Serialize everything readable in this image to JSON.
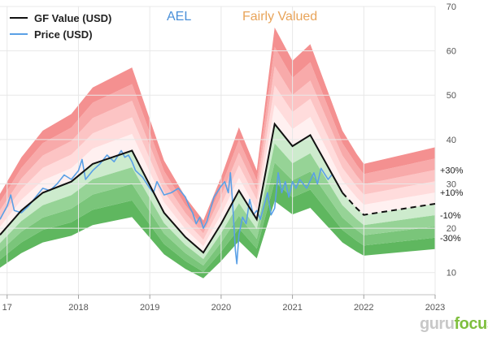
{
  "header": {
    "ticker": "AEL",
    "valuation": "Fairly Valued"
  },
  "brand": {
    "part1": "guru",
    "part2": "focus"
  },
  "colors": {
    "gf_value": "#111111",
    "price": "#5aa0e6",
    "ticker": "#4a90d9",
    "valuation": "#e8a45a",
    "over_bands": [
      "#fff0f0",
      "#ffdcdc",
      "#fcc4c4",
      "#f8aaaa",
      "#f49090",
      "#ef7070"
    ],
    "under_bands": [
      "#e6f6e6",
      "#cdebcd",
      "#b2e0b2",
      "#96d396",
      "#7ac57a",
      "#5fb75f"
    ]
  },
  "chart_data": {
    "type": "line",
    "title": "",
    "xlabel": "",
    "ylabel": "",
    "xlim": [
      2016.9,
      2023.0
    ],
    "ylim": [
      5,
      70
    ],
    "x_ticks": [
      "17",
      "2018",
      "2019",
      "2020",
      "2021",
      "2022",
      "2023"
    ],
    "x_tick_values": [
      2017,
      2018,
      2019,
      2020,
      2021,
      2022,
      2023
    ],
    "y_ticks": [
      10,
      20,
      30,
      40,
      50,
      60,
      70
    ],
    "grid": true,
    "legend": "top-left",
    "legend_items": [
      "GF Value (USD)",
      "Price (USD)"
    ],
    "band_labels": [
      "+30%",
      "+10%",
      "-10%",
      "-30%"
    ],
    "band_label_values": [
      1.3,
      1.1,
      0.9,
      0.7
    ],
    "band_multipliers": [
      0.6,
      0.7,
      0.8,
      0.9,
      1.0,
      1.1,
      1.2,
      1.3,
      1.4,
      1.5
    ],
    "gf_value": {
      "name": "GF Value (USD)",
      "x": [
        2016.9,
        2017.2,
        2017.5,
        2017.9,
        2018.2,
        2018.75,
        2019.2,
        2019.5,
        2019.75,
        2020.0,
        2020.25,
        2020.5,
        2020.75,
        2021.0,
        2021.25,
        2021.7
      ],
      "y": [
        18.5,
        24.0,
        28.0,
        30.5,
        34.5,
        37.5,
        23.5,
        18.0,
        14.5,
        21.0,
        28.5,
        22.0,
        43.5,
        38.5,
        41.0,
        28.0
      ]
    },
    "gf_projection": {
      "x": [
        2021.7,
        2021.9,
        2022.0,
        2023.0
      ],
      "y": [
        28.0,
        24.5,
        23.0,
        25.5
      ]
    },
    "price": {
      "name": "Price (USD)",
      "x": [
        2016.9,
        2017.0,
        2017.05,
        2017.1,
        2017.2,
        2017.3,
        2017.4,
        2017.5,
        2017.6,
        2017.7,
        2017.8,
        2017.9,
        2018.0,
        2018.05,
        2018.1,
        2018.2,
        2018.3,
        2018.4,
        2018.5,
        2018.6,
        2018.65,
        2018.7,
        2018.75,
        2018.8,
        2018.9,
        2019.0,
        2019.05,
        2019.1,
        2019.2,
        2019.3,
        2019.4,
        2019.5,
        2019.55,
        2019.6,
        2019.65,
        2019.7,
        2019.75,
        2019.8,
        2019.9,
        2020.0,
        2020.05,
        2020.1,
        2020.13,
        2020.16,
        2020.2,
        2020.22,
        2020.25,
        2020.3,
        2020.35,
        2020.4,
        2020.45,
        2020.5,
        2020.55,
        2020.6,
        2020.65,
        2020.7,
        2020.75,
        2020.8,
        2020.85,
        2020.9,
        2020.95,
        2021.0,
        2021.05,
        2021.1,
        2021.2,
        2021.3,
        2021.35,
        2021.4,
        2021.5,
        2021.55
      ],
      "y": [
        22.0,
        25.0,
        27.5,
        24.0,
        23.5,
        25.0,
        27.0,
        29.0,
        28.5,
        30.0,
        32.0,
        31.0,
        33.0,
        35.5,
        31.0,
        33.0,
        34.5,
        36.5,
        35.0,
        37.5,
        36.0,
        36.5,
        35.0,
        33.0,
        31.5,
        29.0,
        28.0,
        30.5,
        27.5,
        28.0,
        29.0,
        27.0,
        25.0,
        23.5,
        21.0,
        22.5,
        20.0,
        21.5,
        27.0,
        29.5,
        30.5,
        28.0,
        32.5,
        26.0,
        15.0,
        12.0,
        18.5,
        22.5,
        21.0,
        26.5,
        23.0,
        24.0,
        22.0,
        25.0,
        28.0,
        23.0,
        24.5,
        32.5,
        28.0,
        30.5,
        27.0,
        30.5,
        29.0,
        31.0,
        29.0,
        32.5,
        30.0,
        33.5,
        31.0,
        32.0
      ]
    }
  }
}
